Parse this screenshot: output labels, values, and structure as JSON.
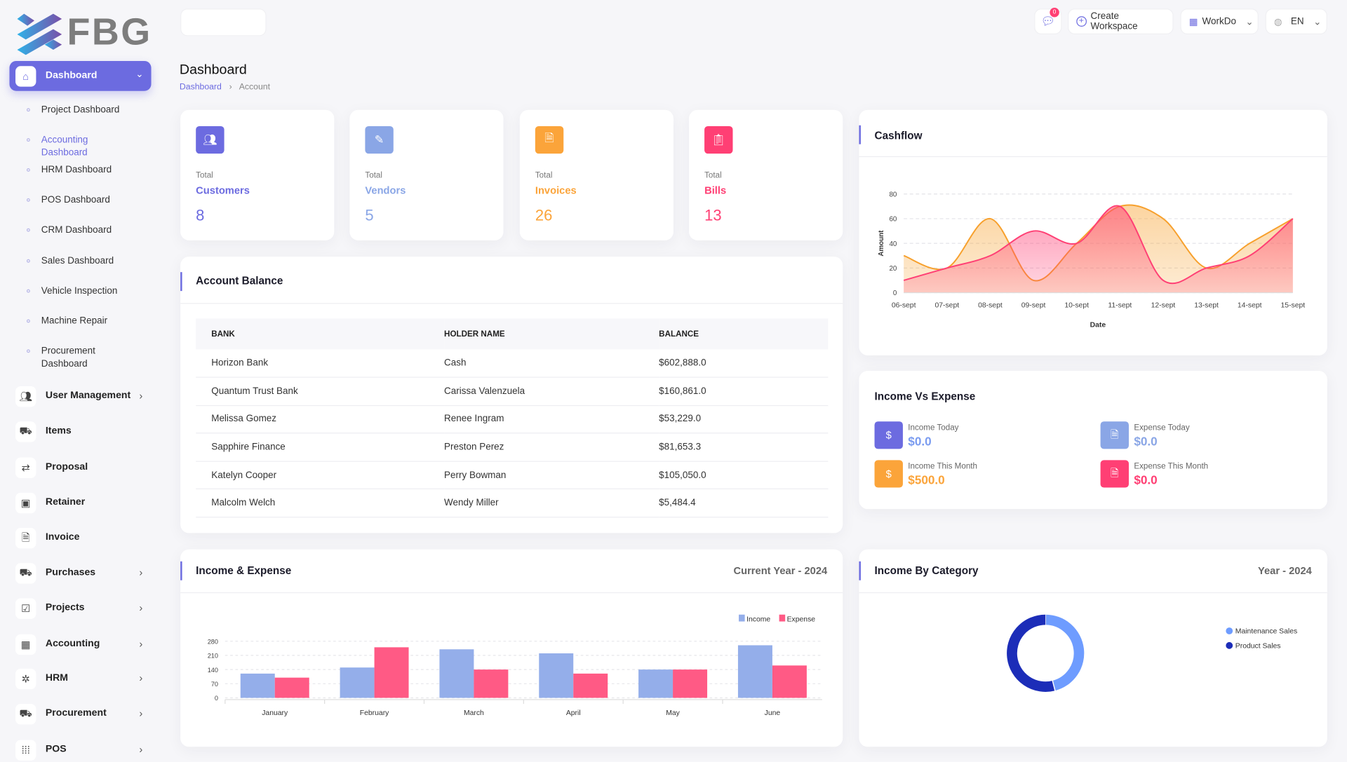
{
  "logo": {
    "text": "FBG"
  },
  "sidebar": {
    "active": {
      "label": "Dashboard"
    },
    "sub_items": [
      {
        "label": "Project Dashboard"
      },
      {
        "label": "Accounting Dashboard"
      },
      {
        "label": "HRM Dashboard"
      },
      {
        "label": "POS Dashboard"
      },
      {
        "label": "CRM Dashboard"
      },
      {
        "label": "Sales Dashboard"
      },
      {
        "label": "Vehicle Inspection"
      },
      {
        "label": "Machine Repair"
      },
      {
        "label": "Procurement Dashboard"
      }
    ],
    "items": [
      {
        "label": "User Management",
        "icon": "users-icon",
        "chevron": true
      },
      {
        "label": "Items",
        "icon": "cart-icon",
        "chevron": false
      },
      {
        "label": "Proposal",
        "icon": "exchange-icon",
        "chevron": false
      },
      {
        "label": "Retainer",
        "icon": "save-icon",
        "chevron": false
      },
      {
        "label": "Invoice",
        "icon": "file-invoice-icon",
        "chevron": false
      },
      {
        "label": "Purchases",
        "icon": "shopping-cart-icon",
        "chevron": true
      },
      {
        "label": "Projects",
        "icon": "checkbox-icon",
        "chevron": true
      },
      {
        "label": "Accounting",
        "icon": "layout-grid-icon",
        "chevron": true
      },
      {
        "label": "HRM",
        "icon": "hrm-icon",
        "chevron": true
      },
      {
        "label": "Procurement",
        "icon": "procurement-icon",
        "chevron": true
      },
      {
        "label": "POS",
        "icon": "grid-dots-icon",
        "chevron": true
      }
    ]
  },
  "topbar": {
    "notification_count": "0",
    "create_workspace": "Create Workspace",
    "workspace": "WorkDo",
    "language": "EN"
  },
  "header": {
    "title": "Dashboard",
    "breadcrumb": [
      "Dashboard",
      "Account"
    ]
  },
  "stats": [
    {
      "total": "Total",
      "label": "Customers",
      "value": "8",
      "color": "#6c6be0"
    },
    {
      "total": "Total",
      "label": "Vendors",
      "value": "5",
      "color": "#8aa6e6"
    },
    {
      "total": "Total",
      "label": "Invoices",
      "value": "26",
      "color": "#fba43a"
    },
    {
      "total": "Total",
      "label": "Bills",
      "value": "13",
      "color": "#ff3f74"
    }
  ],
  "account_balance": {
    "title": "Account Balance",
    "columns": [
      "BANK",
      "HOLDER NAME",
      "BALANCE"
    ],
    "rows": [
      [
        "Horizon Bank",
        "Cash",
        "$602,888.0"
      ],
      [
        "Quantum Trust Bank",
        "Carissa Valenzuela",
        "$160,861.0"
      ],
      [
        "Melissa Gomez",
        "Renee Ingram",
        "$53,229.0"
      ],
      [
        "Sapphire Finance",
        "Preston Perez",
        "$81,653.3"
      ],
      [
        "Katelyn Cooper",
        "Perry Bowman",
        "$105,050.0"
      ],
      [
        "Malcolm Welch",
        "Wendy Miller",
        "$5,484.4"
      ]
    ]
  },
  "cashflow": {
    "title": "Cashflow"
  },
  "income_vs_expense": {
    "title": "Income Vs Expense",
    "items": [
      {
        "label": "Income Today",
        "value": "$0.0",
        "color": "#6c6be0",
        "valcolor": "#7b9cf0"
      },
      {
        "label": "Expense Today",
        "value": "$0.0",
        "color": "#8aa6e6",
        "valcolor": "#8aa6e6"
      },
      {
        "label": "Income This Month",
        "value": "$500.0",
        "color": "#fba43a",
        "valcolor": "#fba43a"
      },
      {
        "label": "Expense This Month",
        "value": "$0.0",
        "color": "#ff3f74",
        "valcolor": "#ff3f74"
      }
    ]
  },
  "income_expense": {
    "title": "Income & Expense",
    "period": "Current Year - 2024"
  },
  "income_category": {
    "title": "Income By Category",
    "period": "Year - 2024"
  },
  "chart_data": [
    {
      "type": "area",
      "title": "Cashflow",
      "xlabel": "Date",
      "ylabel": "Amount",
      "categories": [
        "06-sept",
        "07-sept",
        "08-sept",
        "09-sept",
        "10-sept",
        "11-sept",
        "12-sept",
        "13-sept",
        "14-sept",
        "15-sept"
      ],
      "series": [
        {
          "values": [
            30,
            20,
            60,
            10,
            40,
            70,
            60,
            20,
            40,
            60
          ],
          "color": "#f7a02c"
        },
        {
          "values": [
            10,
            20,
            30,
            50,
            40,
            70,
            10,
            20,
            30,
            60
          ],
          "color": "#ff3f74"
        }
      ],
      "ylim": [
        0,
        80
      ],
      "yticks": [
        0,
        20,
        40,
        60,
        80
      ],
      "grid": true
    },
    {
      "type": "bar",
      "categories": [
        "January",
        "February",
        "March",
        "April",
        "May",
        "June"
      ],
      "series": [
        {
          "name": "Income",
          "values": [
            120,
            150,
            240,
            220,
            140,
            260
          ],
          "color": "#94aeea"
        },
        {
          "name": "Expense",
          "values": [
            100,
            250,
            140,
            120,
            140,
            160
          ],
          "color": "#ff5a85"
        }
      ],
      "ylim": [
        0,
        280
      ],
      "yticks": [
        0,
        70,
        140,
        210,
        280
      ],
      "grid": true,
      "legend": "top-right"
    },
    {
      "type": "pie",
      "variant": "donut",
      "series": [
        {
          "name": "Maintenance Sales",
          "value": 46,
          "color": "#6e9cff"
        },
        {
          "name": "Product Sales",
          "value": 54,
          "color": "#1c2db8"
        }
      ],
      "legend": "right"
    }
  ]
}
